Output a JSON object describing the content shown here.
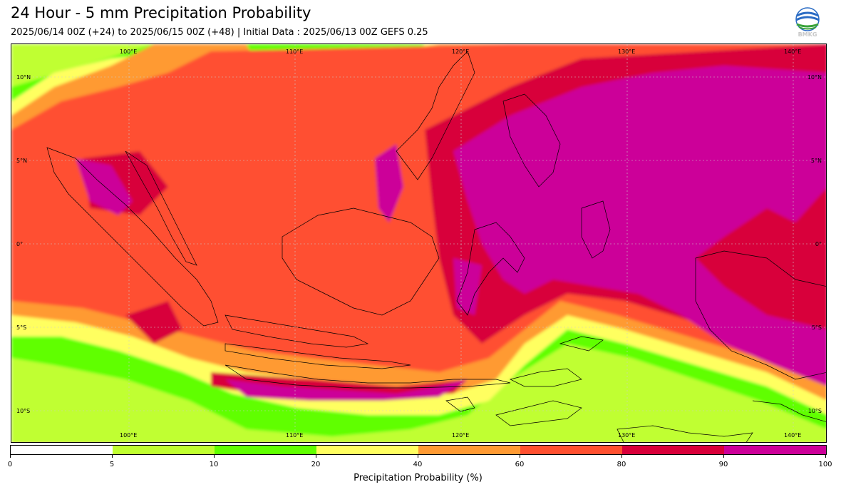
{
  "header": {
    "title": "24 Hour - 5 mm Precipitation Probability",
    "subtitle": "2025/06/14 00Z (+24) to 2025/06/15 00Z (+48) | Initial Data : 2025/06/13 00Z GEFS 0.25",
    "logo_text": "BMKG"
  },
  "map": {
    "lon_labels": [
      "100°E",
      "110°E",
      "120°E",
      "130°E",
      "140°E"
    ],
    "lat_labels": [
      "10°N",
      "5°N",
      "0°",
      "5°S",
      "10°S"
    ],
    "palette": {
      "p5": "#c0ff30",
      "p10": "#60ff00",
      "p20": "#ffff60",
      "p40": "#ff9a33",
      "p60": "#ff5030",
      "p80": "#d8003a",
      "p90": "#cc0099"
    }
  },
  "colorbar": {
    "ticks": [
      "0",
      "5",
      "10",
      "20",
      "40",
      "60",
      "80",
      "90",
      "100"
    ],
    "colors": [
      "#ffffff",
      "#c0ff30",
      "#60ff00",
      "#ffff60",
      "#ff9a33",
      "#ff5030",
      "#d8003a",
      "#cc0099"
    ],
    "label": "Precipitation Probability (%)"
  }
}
